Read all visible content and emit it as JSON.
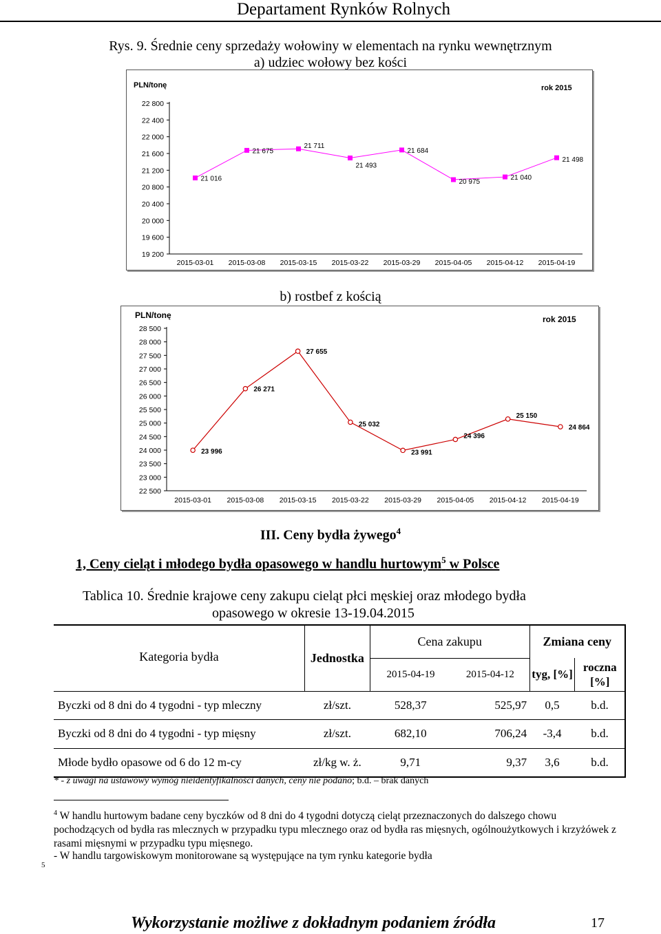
{
  "header": {
    "title": "Departament Rynków Rolnych"
  },
  "figure": {
    "title": "Rys. 9. Średnie ceny sprzedaży wołowiny w elementach na rynku wewnętrznym",
    "sub_a": "a)   udziec wołowy bez kości",
    "sub_b": "b)   rostbef z kością"
  },
  "chart_data": [
    {
      "type": "line",
      "ylabel": "PLN/tonę",
      "legend": "rok 2015",
      "ylim": [
        19200,
        22800
      ],
      "yticks": [
        "22 800",
        "22 400",
        "22 000",
        "21 600",
        "21 200",
        "20 800",
        "20 400",
        "20 000",
        "19 600",
        "19 200"
      ],
      "x": [
        "2015-03-01",
        "2015-03-08",
        "2015-03-15",
        "2015-03-22",
        "2015-03-29",
        "2015-04-05",
        "2015-04-12",
        "2015-04-19"
      ],
      "values": [
        21016,
        21675,
        21711,
        21493,
        21684,
        20975,
        21040,
        21498
      ],
      "labels": [
        "21 016",
        "21 675",
        "21 711",
        "21 493",
        "21 684",
        "20 975",
        "21 040",
        "21 498"
      ],
      "color": "#FF00FF"
    },
    {
      "type": "line",
      "ylabel": "PLN/tonę",
      "legend": "rok 2015",
      "ylim": [
        22500,
        28500
      ],
      "yticks": [
        "28 500",
        "28 000",
        "27 500",
        "27 000",
        "26 500",
        "26 000",
        "25 500",
        "25 000",
        "24 500",
        "24 000",
        "23 500",
        "23 000",
        "22 500"
      ],
      "x": [
        "2015-03-01",
        "2015-03-08",
        "2015-03-15",
        "2015-03-22",
        "2015-03-29",
        "2015-04-05",
        "2015-04-12",
        "2015-04-19"
      ],
      "values": [
        23996,
        26271,
        27655,
        25032,
        23991,
        24396,
        25150,
        24864
      ],
      "labels": [
        "23 996",
        "26 271",
        "27 655",
        "25 032",
        "23 991",
        "24 396",
        "25 150",
        "24 864"
      ],
      "color": "#CC0000"
    }
  ],
  "section": {
    "title": "III. Ceny bydła żywego",
    "title_sup": "4",
    "subtitle": "1, Ceny cieląt i młodego bydła opasowego w handlu hurtowym",
    "subtitle_sup": "5",
    "subtitle_tail": " w Polsce"
  },
  "table": {
    "caption_1": "Tablica 10. Średnie krajowe ceny zakupu cieląt płci męskiej oraz młodego bydła",
    "caption_2": "opasowego w okresie 13-19.04.2015",
    "headers": {
      "kategoria": "Kategoria bydła",
      "jednostka": "Jednostka",
      "cena": "Cena zakupu",
      "zmiana": "Zmiana ceny",
      "d1": "2015-04-19",
      "d2": "2015-04-12",
      "tyg": "tyg, [%]",
      "roczna": "roczna [%]"
    },
    "rows": [
      {
        "kategoria": "Byczki  od 8 dni  do 4 tygodni - typ mleczny",
        "jednostka": "zł/szt.",
        "c1": "528,37",
        "c2": "525,97",
        "tyg": "0,5",
        "roczna": "b.d."
      },
      {
        "kategoria": "Byczki  od 8 dni  do 4 tygodni - typ mięsny",
        "jednostka": "zł/szt.",
        "c1": "682,10",
        "c2": "706,24",
        "tyg": "-3,4",
        "roczna": "b.d."
      },
      {
        "kategoria": "Młode bydło opasowe od 6 do 12 m-cy",
        "jednostka": "zł/kg w. ż.",
        "c1": "9,71",
        "c2": "9,37",
        "tyg": "3,6",
        "roczna": "b.d."
      }
    ],
    "note_italic": "* - z uwagi na ustawowy wymóg nieidentyfikalności danych, ceny nie podano",
    "note_plain": ";  b.d. – brak danych"
  },
  "footnotes": {
    "fn4_num": "4",
    "fn4_text": " W handlu hurtowym badane ceny byczków od 8 dni do 4 tygodni  dotyczą cieląt przeznaczonych do dalszego chowu pochodzących od bydła ras mlecznych  w przypadku typu mlecznego oraz od bydła ras mięsnych, ogólnoużytkowych i krzyżówek z rasami mięsnymi w przypadku typu mięsnego.",
    "fn5_text": "- W handlu targowiskowym monitorowane są występujące na tym rynku kategorie bydła",
    "fn5_num": "5"
  },
  "footer": {
    "text": "Wykorzystanie możliwe z dokładnym podaniem źródła",
    "page": "17"
  }
}
